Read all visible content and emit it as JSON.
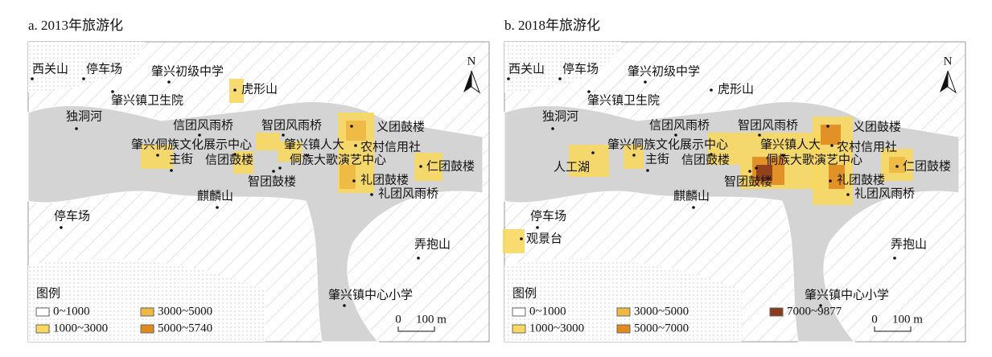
{
  "panels": [
    {
      "title": "a. 2013年旅游化",
      "places": [
        "西关山",
        "停车场",
        "肇兴初级中学",
        "虎形山",
        "肇兴镇卫生院",
        "独洞河",
        "信团风雨桥",
        "智团风雨桥",
        "义团鼓楼",
        "肇兴侗族文化展示中心",
        "肇兴镇人大",
        "农村信用社",
        "主街",
        "信团鼓楼",
        "侗族大歌演艺中心",
        "仁团鼓楼",
        "智团鼓楼",
        "礼团鼓楼",
        "礼团风雨桥",
        "麒麟山",
        "停车场",
        "弄抱山",
        "肇兴镇中心小学"
      ],
      "legend": {
        "title": "图例",
        "items": [
          {
            "label": "0~1000",
            "color": "#ffffff"
          },
          {
            "label": "1000~3000",
            "color": "#f8d860"
          },
          {
            "label": "3000~5000",
            "color": "#f0b840"
          },
          {
            "label": "5000~5740",
            "color": "#e08a20"
          }
        ]
      },
      "scale": {
        "zero": "0",
        "length": "100 m"
      },
      "north": "N"
    },
    {
      "title": "b. 2018年旅游化",
      "places": [
        "西关山",
        "停车场",
        "肇兴初级中学",
        "虎形山",
        "肇兴镇卫生院",
        "独洞河",
        "信团风雨桥",
        "智团风雨桥",
        "义团鼓楼",
        "肇兴侗族文化展示中心",
        "肇兴镇人大",
        "农村信用社",
        "主街",
        "信团鼓楼",
        "侗族大歌演艺中心",
        "仁团鼓楼",
        "智团鼓楼",
        "礼团鼓楼",
        "礼团风雨桥",
        "麒麟山",
        "停车场",
        "弄抱山",
        "肇兴镇中心小学",
        "人工湖",
        "观景台"
      ],
      "legend": {
        "title": "图例",
        "items": [
          {
            "label": "0~1000",
            "color": "#ffffff"
          },
          {
            "label": "1000~3000",
            "color": "#f8d860"
          },
          {
            "label": "3000~5000",
            "color": "#f0b840"
          },
          {
            "label": "5000~7000",
            "color": "#e08a20"
          },
          {
            "label": "7000~9877",
            "color": "#8b3a1a"
          }
        ]
      },
      "scale": {
        "zero": "0",
        "length": "100 m"
      },
      "north": "N"
    }
  ]
}
